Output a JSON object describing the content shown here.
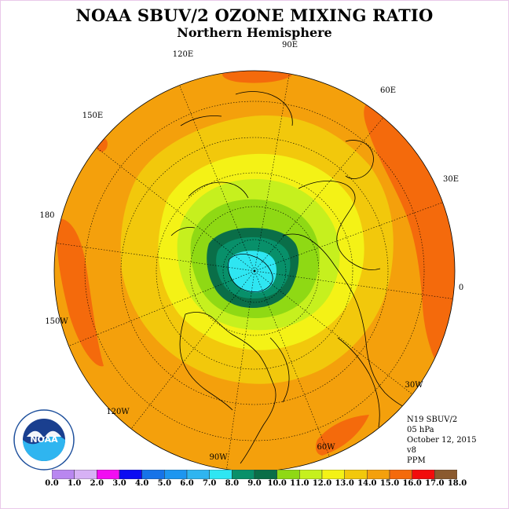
{
  "title": "NOAA SBUV/2 OZONE MIXING RATIO",
  "subtitle": "Northern Hemisphere",
  "longitude_labels": [
    "90E",
    "60E",
    "30E",
    "0",
    "30W",
    "60W",
    "90W",
    "120W",
    "150W",
    "180",
    "150E",
    "120E"
  ],
  "info": {
    "satellite": "N19 SBUV/2",
    "level": "05 hPa",
    "date": "October 12, 2015",
    "version": "v8",
    "units": "PPM"
  },
  "colorbar": {
    "ticks": [
      "0.0",
      "1.0",
      "2.0",
      "3.0",
      "4.0",
      "5.0",
      "6.0",
      "7.0",
      "8.0",
      "9.0",
      "10.0",
      "11.0",
      "12.0",
      "13.0",
      "14.0",
      "15.0",
      "16.0",
      "17.0",
      "18.0"
    ],
    "colors": [
      "#b987f0",
      "#d7b1f5",
      "#f20df2",
      "#0c0cf2",
      "#1673e8",
      "#1d96f0",
      "#2fb5f0",
      "#2fe6f2",
      "#08906a",
      "#0a6e48",
      "#8fd914",
      "#c6f01e",
      "#f4f216",
      "#f2c80c",
      "#f4a00c",
      "#f46a0c",
      "#f20c0c",
      "#8b5a2e"
    ]
  },
  "logo": {
    "text": "NOAA",
    "ring_text": "NATIONAL OCEANIC AND ATMOSPHERIC ADMINISTRATION · U.S. DEPARTMENT OF COMMERCE"
  }
}
